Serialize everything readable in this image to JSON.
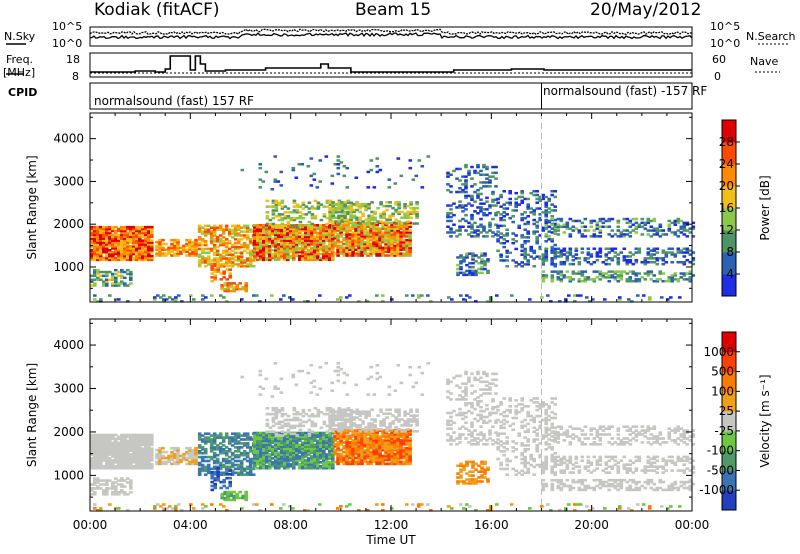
{
  "header": {
    "title": "Kodiak (fitACF)",
    "beam": "Beam 15",
    "date": "20/May/2012"
  },
  "strip": {
    "nsky_label": "N.Sky",
    "nsearch_label": "N.Search",
    "noise_ticks_left": [
      "10^5",
      "10^0"
    ],
    "noise_ticks_right": [
      "10^5",
      "10^0"
    ],
    "freq_label": "Freq.",
    "freq_unit": "[MHz]",
    "freq_ticks": [
      "18",
      "8"
    ],
    "nave_label": "Nave",
    "nave_ticks": [
      "60",
      "0"
    ],
    "cpid_label": "CPID",
    "cpid_segments": [
      {
        "text": "normalsound (fast) 157 RF",
        "start_hour": 0
      },
      {
        "text": "normalsound (fast) -157 RF",
        "start_hour": 18
      }
    ]
  },
  "chart_data": [
    {
      "type": "heatmap",
      "name": "power",
      "ylabel": "Slant Range [km]",
      "ylim": [
        180,
        4600
      ],
      "yticks": [
        "1000",
        "2000",
        "3000",
        "4000"
      ],
      "colorbar_label": "Power [dB]",
      "colorbar_ticks": [
        "4",
        "8",
        "12",
        "16",
        "20",
        "24",
        "28"
      ],
      "colors": [
        "#1e2ee6",
        "#2a62b4",
        "#4e9464",
        "#8cc84a",
        "#f0c018",
        "#ff8a00",
        "#ff4a00",
        "#e00000"
      ]
    },
    {
      "type": "heatmap",
      "name": "velocity",
      "xlabel": "Time UT",
      "ylabel": "Slant Range [km]",
      "ylim": [
        180,
        4600
      ],
      "xlim": [
        0,
        24
      ],
      "xticks": [
        "00:00",
        "04:00",
        "08:00",
        "12:00",
        "16:00",
        "20:00",
        "00:00"
      ],
      "yticks": [
        "1000",
        "2000",
        "3000",
        "4000"
      ],
      "colorbar_label": "Velocity [m s⁻¹]",
      "colorbar_ticks": [
        "1000",
        "500",
        "100",
        "25",
        "-25",
        "-100",
        "-500",
        "-1000"
      ],
      "colors": [
        "#2040c0",
        "#3a74b4",
        "#4e9a6a",
        "#6cc840",
        "#c6c6c2",
        "#f0a018",
        "#ff7a00",
        "#ff4000",
        "#e00000"
      ]
    }
  ]
}
